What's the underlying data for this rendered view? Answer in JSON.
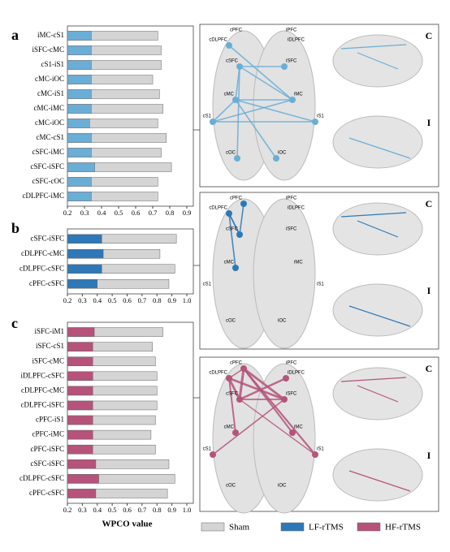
{
  "chart_data": [
    {
      "type": "bar",
      "panel": "a",
      "categories": [
        "iMC-cS1",
        "iSFC-cMC",
        "cS1-iS1",
        "cMC-iOC",
        "cMC-iS1",
        "cMC-iMC",
        "cMC-iOC",
        "cMC-cS1",
        "cSFC-iMC",
        "cSFC-iSFC",
        "cSFC-cOC",
        "cDLPFC-iMC"
      ],
      "series": [
        {
          "name": "Sham",
          "color": "#d4d4d4",
          "values": [
            0.73,
            0.75,
            0.75,
            0.7,
            0.74,
            0.76,
            0.73,
            0.78,
            0.75,
            0.81,
            0.73,
            0.73
          ]
        },
        {
          "name": "LF-rTMS",
          "color": "#6aaed6",
          "values": [
            0.34,
            0.34,
            0.34,
            0.34,
            0.34,
            0.34,
            0.33,
            0.34,
            0.34,
            0.36,
            0.34,
            0.34
          ]
        }
      ],
      "xlim": [
        0.2,
        0.9
      ],
      "xticks": [
        0.2,
        0.3,
        0.4,
        0.5,
        0.6,
        0.7,
        0.8,
        0.9
      ]
    },
    {
      "type": "bar",
      "panel": "b",
      "categories": [
        "cSFC-iSFC",
        "cDLPFC-cMC",
        "cDLPFC-cSFC",
        "cPFC-cSFC"
      ],
      "series": [
        {
          "name": "Sham",
          "color": "#d4d4d4",
          "values": [
            0.93,
            0.82,
            0.92,
            0.88
          ]
        },
        {
          "name": "LF-rTMS",
          "color": "#2f78b7",
          "values": [
            0.43,
            0.44,
            0.43,
            0.4
          ]
        }
      ],
      "xlim": [
        0.2,
        1.0
      ],
      "xticks": [
        0.2,
        0.3,
        0.4,
        0.5,
        0.6,
        0.7,
        0.8,
        0.9,
        {
          "value": 1.0,
          "label": "1.0"
        }
      ]
    },
    {
      "type": "bar",
      "panel": "c",
      "xlabel": "WPCO value",
      "categories": [
        "iSFC-iM1",
        "iSFC-cS1",
        "iSFC-cMC",
        "iDLPFC-cSFC",
        "cDLPFC-cMC",
        "cDLPFC-iSFC",
        "cPFC-iS1",
        "cPFC-iMC",
        "cPFC-iSFC",
        "cSFC-iSFC",
        "cDLPFC-cSFC",
        "cPFC-cSFC"
      ],
      "series": [
        {
          "name": "Sham",
          "color": "#d4d4d4",
          "values": [
            0.84,
            0.77,
            0.79,
            0.8,
            0.8,
            0.8,
            0.79,
            0.76,
            0.79,
            0.88,
            0.92,
            0.87
          ]
        },
        {
          "name": "HF-rTMS",
          "color": "#b5537b",
          "values": [
            0.38,
            0.37,
            0.37,
            0.37,
            0.37,
            0.37,
            0.37,
            0.37,
            0.37,
            0.39,
            0.41,
            0.39
          ]
        }
      ],
      "xlim": [
        0.2,
        1.0
      ],
      "xticks": [
        0.2,
        0.3,
        0.4,
        0.5,
        0.6,
        0.7,
        0.8,
        0.9,
        {
          "value": 1.0,
          "label": "1.0"
        }
      ]
    }
  ],
  "brain_labels": [
    "cPFC",
    "iPFC",
    "cDLPFC",
    "iDLPFC",
    "cSFC",
    "iSFC",
    "cMC",
    "iMC",
    "cS1",
    "iS1",
    "cOC",
    "iOC"
  ],
  "views": [
    "C",
    "I"
  ]
}
